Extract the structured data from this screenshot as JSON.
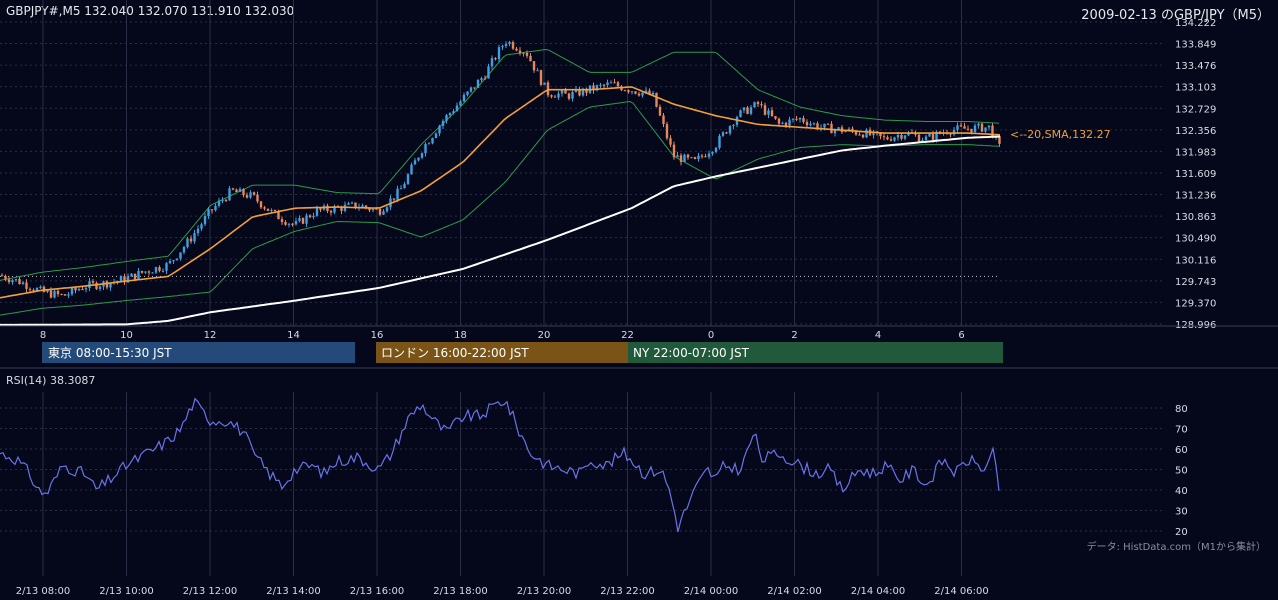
{
  "header": {
    "symbol_ohlc": "GBPJPY#,M5 132.040 132.070 131.910 132.030",
    "date_title": "2009-02-13 のGBP/JPY（M5）"
  },
  "colors": {
    "background": "#05071a",
    "grid": "#2a2e45",
    "bull": "#3f9fe0",
    "bear": "#e8875c",
    "sma20": "#f2a03a",
    "sma200": "#ffffff",
    "bollinger": "#2f9a4a",
    "rsi": "#6a74e8",
    "tokyo": "#244a7a",
    "london": "#7a5316",
    "ny": "#215a3a"
  },
  "ma_label": "<--20,SMA,132.27",
  "session_bar": {
    "tokyo": "東京 08:00-15:30 JST",
    "london": "ロンドン 16:00-22:00 JST",
    "ny": "NY 22:00-07:00 JST"
  },
  "rsi_label": "RSI(14) 38.3087",
  "data_source": "データ: HistData.com（M1から集計）",
  "chart_data": [
    {
      "type": "candlestick",
      "title": "2009-02-13 のGBP/JPY（M5）",
      "ylim": [
        128.996,
        134.222
      ],
      "y_ticks": [
        "134.222",
        "133.849",
        "133.476",
        "133.103",
        "132.729",
        "132.356",
        "131.983",
        "131.609",
        "131.236",
        "130.863",
        "130.490",
        "130.116",
        "129.743",
        "129.370",
        "128.996"
      ],
      "x_ticks": [
        "8",
        "10",
        "12",
        "14",
        "16",
        "18",
        "20",
        "22",
        "0",
        "2",
        "4",
        "6"
      ],
      "close_profile": [
        [
          7.0,
          129.84
        ],
        [
          7.5,
          129.72
        ],
        [
          8.0,
          129.55
        ],
        [
          8.5,
          129.48
        ],
        [
          9.0,
          129.65
        ],
        [
          9.5,
          129.7
        ],
        [
          10.0,
          129.78
        ],
        [
          10.5,
          129.92
        ],
        [
          11.0,
          130.02
        ],
        [
          11.5,
          130.45
        ],
        [
          12.0,
          130.95
        ],
        [
          12.5,
          131.3
        ],
        [
          13.0,
          131.2
        ],
        [
          13.5,
          130.9
        ],
        [
          14.0,
          130.7
        ],
        [
          14.5,
          130.95
        ],
        [
          15.0,
          131.0
        ],
        [
          15.5,
          131.05
        ],
        [
          16.0,
          130.95
        ],
        [
          16.5,
          131.3
        ],
        [
          17.0,
          132.0
        ],
        [
          17.5,
          132.5
        ],
        [
          18.0,
          132.9
        ],
        [
          18.5,
          133.3
        ],
        [
          19.0,
          133.9
        ],
        [
          19.5,
          133.7
        ],
        [
          20.0,
          133.0
        ],
        [
          20.5,
          132.95
        ],
        [
          21.0,
          133.05
        ],
        [
          21.5,
          133.15
        ],
        [
          22.0,
          133.05
        ],
        [
          22.5,
          132.95
        ],
        [
          23.0,
          131.9
        ],
        [
          23.5,
          131.8
        ],
        [
          24.0,
          132.1
        ],
        [
          24.5,
          132.6
        ],
        [
          25.0,
          132.8
        ],
        [
          25.5,
          132.45
        ],
        [
          26.0,
          132.55
        ],
        [
          26.5,
          132.4
        ],
        [
          27.0,
          132.35
        ],
        [
          27.5,
          132.3
        ],
        [
          28.0,
          132.2
        ],
        [
          28.5,
          132.3
        ],
        [
          29.0,
          132.2
        ],
        [
          29.5,
          132.35
        ],
        [
          30.0,
          132.38
        ],
        [
          30.5,
          132.4
        ],
        [
          30.75,
          132.03
        ]
      ],
      "sma20_profile": [
        [
          7.0,
          129.45
        ],
        [
          8.0,
          129.58
        ],
        [
          9.0,
          129.65
        ],
        [
          10.0,
          129.74
        ],
        [
          11.0,
          129.82
        ],
        [
          12.0,
          130.3
        ],
        [
          13.0,
          130.85
        ],
        [
          14.0,
          131.0
        ],
        [
          15.0,
          131.02
        ],
        [
          16.0,
          131.0
        ],
        [
          17.0,
          131.3
        ],
        [
          18.0,
          131.8
        ],
        [
          19.0,
          132.55
        ],
        [
          20.0,
          133.05
        ],
        [
          21.0,
          133.05
        ],
        [
          22.0,
          133.1
        ],
        [
          23.0,
          132.8
        ],
        [
          24.0,
          132.6
        ],
        [
          25.0,
          132.45
        ],
        [
          26.0,
          132.4
        ],
        [
          27.0,
          132.35
        ],
        [
          28.0,
          132.3
        ],
        [
          29.0,
          132.3
        ],
        [
          30.0,
          132.3
        ],
        [
          30.75,
          132.27
        ]
      ],
      "sma200_profile": [
        [
          7.0,
          128.98
        ],
        [
          10.0,
          128.99
        ],
        [
          11.0,
          129.05
        ],
        [
          12.0,
          129.2
        ],
        [
          14.0,
          129.4
        ],
        [
          16.0,
          129.62
        ],
        [
          18.0,
          129.95
        ],
        [
          20.0,
          130.45
        ],
        [
          22.0,
          131.0
        ],
        [
          23.0,
          131.38
        ],
        [
          24.0,
          131.55
        ],
        [
          25.0,
          131.7
        ],
        [
          26.0,
          131.85
        ],
        [
          27.0,
          132.0
        ],
        [
          28.0,
          132.08
        ],
        [
          29.0,
          132.15
        ],
        [
          30.0,
          132.22
        ],
        [
          30.75,
          132.24
        ]
      ],
      "bb_width_profile": [
        [
          7.0,
          0.3
        ],
        [
          11.0,
          0.35
        ],
        [
          12.0,
          0.75
        ],
        [
          13.0,
          0.55
        ],
        [
          15.0,
          0.25
        ],
        [
          16.0,
          0.25
        ],
        [
          17.0,
          0.8
        ],
        [
          18.0,
          1.0
        ],
        [
          19.0,
          1.1
        ],
        [
          20.0,
          0.7
        ],
        [
          21.0,
          0.3
        ],
        [
          22.0,
          0.25
        ],
        [
          23.0,
          0.9
        ],
        [
          24.0,
          1.1
        ],
        [
          25.0,
          0.6
        ],
        [
          26.0,
          0.35
        ],
        [
          27.0,
          0.25
        ],
        [
          29.0,
          0.2
        ],
        [
          30.75,
          0.2
        ]
      ],
      "reference_level": 129.82
    },
    {
      "type": "line",
      "series": [
        {
          "name": "RSI(14)"
        }
      ],
      "ylim": [
        15,
        88
      ],
      "y_ticks": [
        "80",
        "70",
        "60",
        "50",
        "40",
        "30",
        "20"
      ],
      "x_ticks": [
        "2/13 08:00",
        "2/13 10:00",
        "2/13 12:00",
        "2/13 14:00",
        "2/13 16:00",
        "2/13 18:00",
        "2/13 20:00",
        "2/13 22:00",
        "2/14 00:00",
        "2/14 02:00",
        "2/14 04:00",
        "2/14 06:00"
      ],
      "values_profile": [
        [
          7.0,
          58
        ],
        [
          7.4,
          55
        ],
        [
          7.7,
          48
        ],
        [
          7.9,
          40
        ],
        [
          8.1,
          38
        ],
        [
          8.5,
          52
        ],
        [
          9.0,
          48
        ],
        [
          9.3,
          40
        ],
        [
          9.6,
          45
        ],
        [
          10.0,
          52
        ],
        [
          10.5,
          58
        ],
        [
          11.0,
          64
        ],
        [
          11.3,
          70
        ],
        [
          11.6,
          83
        ],
        [
          12.0,
          74
        ],
        [
          12.4,
          74
        ],
        [
          12.8,
          68
        ],
        [
          13.0,
          58
        ],
        [
          13.4,
          48
        ],
        [
          13.7,
          42
        ],
        [
          14.0,
          50
        ],
        [
          14.4,
          52
        ],
        [
          14.7,
          48
        ],
        [
          15.0,
          54
        ],
        [
          15.5,
          56
        ],
        [
          16.0,
          50
        ],
        [
          16.3,
          58
        ],
        [
          16.7,
          75
        ],
        [
          17.0,
          82
        ],
        [
          17.3,
          74
        ],
        [
          17.6,
          68
        ],
        [
          18.0,
          76
        ],
        [
          18.4,
          76
        ],
        [
          18.8,
          82
        ],
        [
          19.0,
          84
        ],
        [
          19.3,
          70
        ],
        [
          19.6,
          58
        ],
        [
          20.0,
          52
        ],
        [
          20.4,
          50
        ],
        [
          20.8,
          48
        ],
        [
          21.0,
          55
        ],
        [
          21.4,
          52
        ],
        [
          21.8,
          58
        ],
        [
          22.0,
          55
        ],
        [
          22.3,
          48
        ],
        [
          22.7,
          50
        ],
        [
          22.9,
          40
        ],
        [
          23.1,
          22
        ],
        [
          23.5,
          40
        ],
        [
          23.8,
          50
        ],
        [
          24.0,
          45
        ],
        [
          24.2,
          52
        ],
        [
          24.6,
          50
        ],
        [
          24.9,
          68
        ],
        [
          25.1,
          55
        ],
        [
          25.5,
          58
        ],
        [
          26.0,
          52
        ],
        [
          26.4,
          48
        ],
        [
          26.7,
          50
        ],
        [
          27.0,
          40
        ],
        [
          27.4,
          50
        ],
        [
          27.8,
          48
        ],
        [
          28.0,
          52
        ],
        [
          28.4,
          45
        ],
        [
          28.7,
          50
        ],
        [
          29.0,
          42
        ],
        [
          29.4,
          55
        ],
        [
          29.7,
          48
        ],
        [
          30.0,
          55
        ],
        [
          30.4,
          50
        ],
        [
          30.6,
          58
        ],
        [
          30.75,
          38
        ]
      ]
    }
  ]
}
